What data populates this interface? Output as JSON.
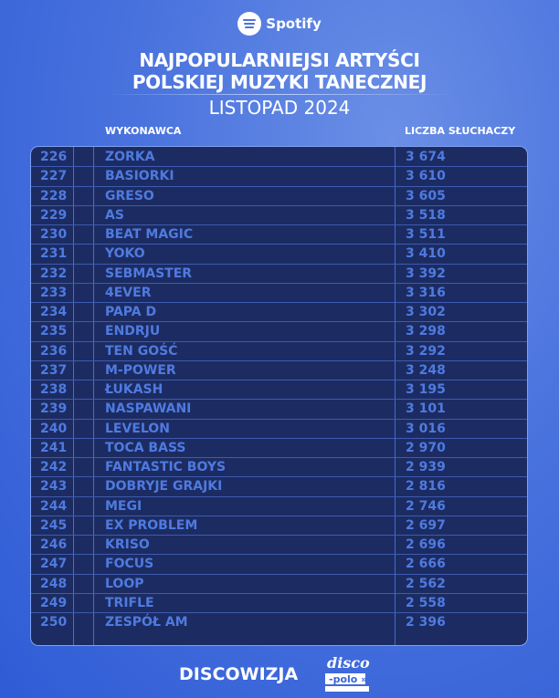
{
  "brand": "Spotify",
  "title_line1": "NAJPOPULARNIEJSI ARTYŚCI",
  "title_line2": "POLSKIEJ MUZYKI TANECZNEJ",
  "subtitle": "LISTOPAD 2024",
  "headers": {
    "artist": "WYKONAWCA",
    "listeners": "LICZBA SŁUCHACZY"
  },
  "rows": [
    {
      "rank": "226",
      "artist": "ZORKA",
      "listeners": "3 674"
    },
    {
      "rank": "227",
      "artist": "BASIORKI",
      "listeners": "3 610"
    },
    {
      "rank": "228",
      "artist": "GRESO",
      "listeners": "3 605"
    },
    {
      "rank": "229",
      "artist": "AS",
      "listeners": "3 518"
    },
    {
      "rank": "230",
      "artist": "BEAT MAGIC",
      "listeners": "3 511"
    },
    {
      "rank": "231",
      "artist": "YOKO",
      "listeners": "3 410"
    },
    {
      "rank": "232",
      "artist": "SEBMASTER",
      "listeners": "3 392"
    },
    {
      "rank": "233",
      "artist": "4EVER",
      "listeners": "3 316"
    },
    {
      "rank": "234",
      "artist": "PAPA D",
      "listeners": "3 302"
    },
    {
      "rank": "235",
      "artist": "ENDRJU",
      "listeners": "3 298"
    },
    {
      "rank": "236",
      "artist": "TEN GOŚĆ",
      "listeners": "3 292"
    },
    {
      "rank": "237",
      "artist": "M-POWER",
      "listeners": "3 248"
    },
    {
      "rank": "238",
      "artist": "ŁUKASH",
      "listeners": "3 195"
    },
    {
      "rank": "239",
      "artist": "NASPAWANI",
      "listeners": "3 101"
    },
    {
      "rank": "240",
      "artist": "LEVELON",
      "listeners": "3 016"
    },
    {
      "rank": "241",
      "artist": "TOCA BASS",
      "listeners": "2 970"
    },
    {
      "rank": "242",
      "artist": "FANTASTIC BOYS",
      "listeners": "2 939"
    },
    {
      "rank": "243",
      "artist": "DOBRYJE GRAJKI",
      "listeners": "2 816"
    },
    {
      "rank": "244",
      "artist": "MEGI",
      "listeners": "2 746"
    },
    {
      "rank": "245",
      "artist": "EX PROBLEM",
      "listeners": "2 697"
    },
    {
      "rank": "246",
      "artist": "KRISO",
      "listeners": "2 696"
    },
    {
      "rank": "247",
      "artist": "FOCUS",
      "listeners": "2 666"
    },
    {
      "rank": "248",
      "artist": "LOOP",
      "listeners": "2 562"
    },
    {
      "rank": "249",
      "artist": "TRIFLE",
      "listeners": "2 558"
    },
    {
      "rank": "250",
      "artist": "ZESPÓŁ AM",
      "listeners": "2 396"
    }
  ],
  "footer": {
    "discowizja": "DISCOWIZJA",
    "discopolo_logo": "disco-polo.info"
  },
  "colors": {
    "background": "#4a73de",
    "table": "#1c2c62",
    "row_text": "#4f7ae0"
  }
}
